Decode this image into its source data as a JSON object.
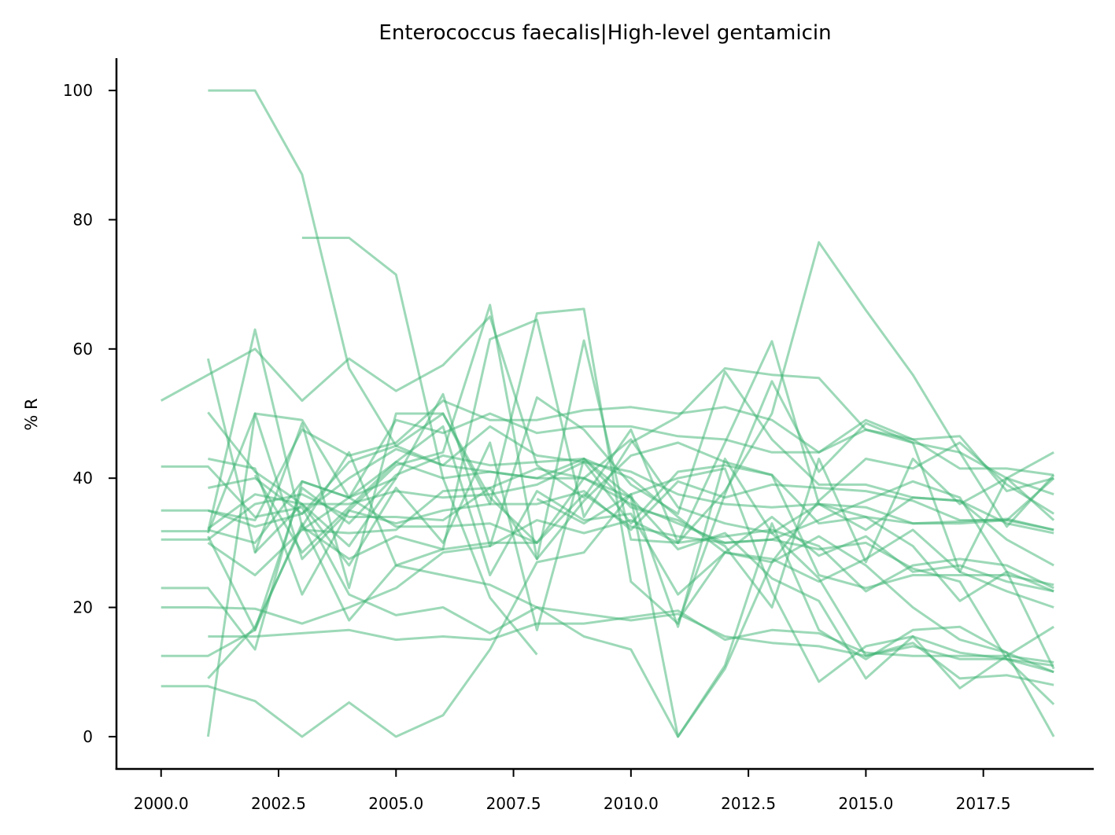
{
  "chart_data": {
    "type": "line",
    "title": "Enterococcus faecalis|High-level gentamicin",
    "xlabel": "",
    "ylabel": "% R",
    "xlim": [
      1999.05,
      2019.85
    ],
    "ylim": [
      -5,
      105
    ],
    "x_ticks": [
      {
        "value": 2000,
        "label": "2000.0"
      },
      {
        "value": 2002.5,
        "label": "2002.5"
      },
      {
        "value": 2005,
        "label": "2005.0"
      },
      {
        "value": 2007.5,
        "label": "2007.5"
      },
      {
        "value": 2010,
        "label": "2010.0"
      },
      {
        "value": 2012.5,
        "label": "2012.5"
      },
      {
        "value": 2015,
        "label": "2015.0"
      },
      {
        "value": 2017.5,
        "label": "2017.5"
      }
    ],
    "y_ticks": [
      {
        "value": 0,
        "label": "0"
      },
      {
        "value": 20,
        "label": "20"
      },
      {
        "value": 40,
        "label": "40"
      },
      {
        "value": 60,
        "label": "60"
      },
      {
        "value": 80,
        "label": "80"
      },
      {
        "value": 100,
        "label": "100"
      }
    ],
    "grid": false,
    "line_color": "#3cb371",
    "line_opacity": 0.5,
    "series": [
      {
        "x": [
          2001,
          2002,
          2003,
          2004,
          2005,
          2006,
          2007,
          2008
        ],
        "y": [
          100,
          100,
          87,
          57,
          45,
          50,
          37,
          30
        ]
      },
      {
        "x": [
          2003,
          2004,
          2005,
          2006,
          2007,
          2008
        ],
        "y": [
          77.2,
          77.2,
          71.5,
          40,
          21.5,
          12.7
        ]
      },
      {
        "x": [
          2000,
          2001,
          2002,
          2003,
          2004,
          2005,
          2006,
          2007,
          2008,
          2009,
          2010,
          2011,
          2012,
          2013,
          2014,
          2015,
          2016,
          2017,
          2018,
          2019
        ],
        "y": [
          52,
          56,
          60,
          52,
          58.5,
          53.5,
          57.5,
          65,
          42,
          37,
          47.5,
          30,
          38,
          50,
          76.5,
          66,
          56,
          44,
          32.5,
          40.5
        ]
      },
      {
        "x": [
          2001,
          2002,
          2003,
          2004,
          2005,
          2006,
          2007,
          2008,
          2009,
          2010,
          2011,
          2012,
          2013,
          2014,
          2015,
          2016,
          2017,
          2018,
          2019
        ],
        "y": [
          58.5,
          28.5,
          48.5,
          23,
          50,
          50,
          36,
          65.5,
          66.2,
          24,
          17.5,
          37.5,
          55,
          41,
          48.5,
          45.5,
          25.5,
          40,
          33.5
        ]
      },
      {
        "x": [
          2001,
          2002,
          2003,
          2004,
          2005,
          2006,
          2007,
          2008,
          2009,
          2010,
          2011,
          2012,
          2013,
          2014,
          2015,
          2016,
          2017,
          2018,
          2019
        ],
        "y": [
          50.2,
          41,
          36,
          29.5,
          40,
          53,
          29.5,
          52.5,
          47.5,
          39,
          34.5,
          56.5,
          46,
          39,
          39,
          37,
          36.5,
          30.5,
          26.5
        ]
      },
      {
        "x": [
          2001,
          2002,
          2003,
          2004,
          2005,
          2006,
          2007,
          2008,
          2009,
          2010,
          2011,
          2012,
          2013,
          2014,
          2015,
          2016,
          2017,
          2018,
          2019
        ],
        "y": [
          43,
          41.5,
          22,
          35,
          42,
          44,
          66.8,
          27.5,
          61.3,
          30.5,
          30,
          45.5,
          61.2,
          36,
          34,
          29.5,
          21,
          25.5,
          22.5
        ]
      },
      {
        "x": [
          2001,
          2002,
          2003,
          2004,
          2005,
          2006,
          2007,
          2008,
          2009,
          2010,
          2011,
          2012,
          2013,
          2014,
          2015,
          2016,
          2017,
          2018,
          2019
        ],
        "y": [
          9,
          17,
          32.5,
          44,
          26.5,
          29,
          61.5,
          64.5,
          34,
          45.5,
          49.5,
          57,
          56,
          55.5,
          47.5,
          46,
          46.5,
          38,
          40
        ]
      },
      {
        "x": [
          2001,
          2002,
          2003,
          2004,
          2005,
          2006,
          2007,
          2008,
          2009,
          2010,
          2011,
          2012,
          2013,
          2014,
          2015,
          2016,
          2017,
          2018,
          2019
        ],
        "y": [
          0,
          50,
          49,
          37,
          49,
          47,
          50,
          47,
          48,
          48,
          46.5,
          46,
          44,
          44,
          47.5,
          45.5,
          44,
          40,
          37.5
        ]
      },
      {
        "x": [
          2001,
          2002,
          2003,
          2004,
          2005,
          2006,
          2007,
          2008,
          2009,
          2010,
          2011,
          2012,
          2013,
          2014,
          2015,
          2016,
          2017,
          2018,
          2019
        ],
        "y": [
          35,
          33.5,
          47.5,
          43.5,
          45.5,
          52,
          49,
          49,
          50.5,
          51,
          50,
          51,
          49,
          44,
          49,
          46,
          41.5,
          41.5,
          40.5
        ]
      },
      {
        "x": [
          2001,
          2002,
          2003,
          2004,
          2005,
          2006,
          2007,
          2008,
          2009,
          2010,
          2011,
          2012,
          2013,
          2014,
          2015,
          2016,
          2017,
          2018,
          2019
        ],
        "y": [
          38.5,
          40,
          34.5,
          40,
          44.5,
          42,
          48,
          43.5,
          42.5,
          33,
          41,
          42,
          40.5,
          33,
          34,
          33,
          33.3,
          33.7,
          32
        ]
      },
      {
        "x": [
          2001,
          2002,
          2003,
          2004,
          2005,
          2006,
          2007,
          2008,
          2009,
          2010,
          2011,
          2012,
          2013,
          2014,
          2015,
          2016,
          2017,
          2018,
          2019
        ],
        "y": [
          32,
          30,
          39.5,
          37,
          42.5,
          40,
          41,
          40,
          40,
          46,
          35.5,
          33,
          31.5,
          36,
          35.5,
          33,
          33,
          33.5,
          40
        ]
      },
      {
        "x": [
          2001,
          2002,
          2003,
          2004,
          2005,
          2006,
          2007,
          2008,
          2009,
          2010,
          2011,
          2012,
          2013,
          2014,
          2015,
          2016,
          2017,
          2018,
          2019
        ],
        "y": [
          30,
          25,
          32,
          31.5,
          32,
          38,
          38.5,
          27.5,
          36.5,
          43.5,
          45.5,
          42.5,
          40.5,
          25,
          23,
          25,
          25,
          25,
          23.5
        ]
      },
      {
        "x": [
          2001,
          2002,
          2003,
          2004,
          2005,
          2006,
          2007,
          2008,
          2009,
          2010,
          2011,
          2012,
          2013,
          2014,
          2015,
          2016,
          2017,
          2018,
          2019
        ],
        "y": [
          31.5,
          50,
          27.5,
          35,
          33,
          35,
          36,
          36,
          38,
          32,
          39.5,
          37,
          39,
          38.5,
          38,
          36.5,
          33.5,
          33.5,
          32
        ]
      },
      {
        "x": [
          2001,
          2002,
          2003,
          2004,
          2005,
          2006,
          2007,
          2008,
          2009,
          2010,
          2011,
          2012,
          2013,
          2014,
          2015,
          2016,
          2017,
          2018,
          2019
        ],
        "y": [
          32.2,
          37.5,
          36,
          36,
          38,
          37,
          37.5,
          39,
          42.5,
          41,
          37.5,
          36,
          35.5,
          36,
          32,
          37,
          36.5,
          33,
          31.5
        ]
      },
      {
        "x": [
          2001,
          2002,
          2003,
          2004,
          2005,
          2006,
          2007,
          2008,
          2009,
          2010,
          2011,
          2012,
          2013,
          2014,
          2015,
          2016,
          2017,
          2018,
          2019
        ],
        "y": [
          31,
          16.5,
          38.5,
          33,
          40.5,
          43.5,
          42,
          42.5,
          43,
          40,
          34,
          28.5,
          27.5,
          24,
          27.5,
          32,
          25.5,
          22.5,
          20
        ]
      },
      {
        "x": [
          2001,
          2002,
          2003,
          2004,
          2005,
          2006,
          2007,
          2008,
          2009,
          2010,
          2011,
          2012,
          2013,
          2014,
          2015,
          2016,
          2017,
          2018,
          2019
        ],
        "y": [
          15.5,
          15.5,
          16,
          16.5,
          15,
          15.5,
          15,
          17.5,
          17.5,
          18.5,
          19.5,
          15,
          16.5,
          16,
          13,
          12.5,
          12.5,
          12.5,
          11.5
        ]
      },
      {
        "x": [
          2000,
          2001,
          2002,
          2003,
          2004,
          2005,
          2006,
          2007,
          2008,
          2009,
          2010,
          2011,
          2012,
          2013,
          2014,
          2015,
          2016,
          2017,
          2018,
          2019
        ],
        "y": [
          20,
          20,
          19.8,
          17.5,
          20,
          23,
          28.5,
          29.5,
          33.5,
          31.5,
          33.5,
          30,
          31,
          32,
          29.5,
          22.5,
          26.5,
          27.5,
          26.5,
          23
        ]
      },
      {
        "x": [
          2000,
          2001,
          2002,
          2003,
          2004,
          2005,
          2006,
          2007,
          2008,
          2009,
          2010,
          2011,
          2012,
          2013,
          2014,
          2015,
          2016,
          2017,
          2018,
          2019
        ],
        "y": [
          23,
          23,
          13.5,
          39.5,
          37,
          32.5,
          32.5,
          33,
          30,
          37.5,
          32.5,
          31,
          30,
          30.5,
          33.5,
          36.5,
          39.5,
          37,
          25.5,
          10.5
        ]
      },
      {
        "x": [
          2000,
          2001,
          2002,
          2003,
          2004,
          2005,
          2006,
          2007,
          2008,
          2009,
          2010,
          2011,
          2012,
          2013,
          2014,
          2015,
          2016,
          2017,
          2018,
          2019
        ],
        "y": [
          12.5,
          12.5,
          16.5,
          33,
          18,
          26.5,
          25,
          23.5,
          20,
          19,
          18,
          19,
          15.5,
          14.5,
          14,
          12.5,
          14,
          12,
          12,
          10
        ]
      },
      {
        "x": [
          2000,
          2001,
          2002,
          2003,
          2004,
          2005,
          2006,
          2007,
          2008,
          2009,
          2010,
          2011,
          2012,
          2013,
          2014,
          2015,
          2016,
          2017,
          2018,
          2019
        ],
        "y": [
          7.8,
          7.8,
          5.5,
          0,
          5.3,
          0,
          3.3,
          13.5,
          27,
          28.5,
          37.5,
          40,
          41.5,
          22.5,
          8.5,
          14,
          15.5,
          13,
          12,
          11
        ]
      },
      {
        "x": [
          2000,
          2001,
          2002,
          2003,
          2004,
          2005,
          2006,
          2007,
          2008,
          2009,
          2010,
          2011,
          2012,
          2013,
          2014,
          2015,
          2016,
          2017,
          2018,
          2019
        ],
        "y": [
          30.5,
          30.5,
          36,
          37.5,
          34,
          34,
          33.5,
          38.5,
          41.5,
          40,
          37,
          0,
          10.5,
          27,
          31,
          26.5,
          20,
          15,
          13,
          10
        ]
      },
      {
        "x": [
          2000,
          2001,
          2002,
          2003,
          2004,
          2005,
          2006,
          2007,
          2008,
          2009,
          2010,
          2011,
          2012,
          2013,
          2014,
          2015,
          2016,
          2017,
          2018,
          2019
        ],
        "y": [
          31.8,
          31.8,
          63,
          32.5,
          27.5,
          31,
          29,
          30,
          30,
          40,
          36,
          33,
          30,
          30.5,
          29,
          30,
          26,
          24,
          12,
          5
        ]
      },
      {
        "x": [
          2000,
          2001,
          2002,
          2003,
          2004,
          2005,
          2006,
          2007,
          2008,
          2009,
          2010,
          2011,
          2012,
          2013,
          2014,
          2015,
          2016,
          2017,
          2018,
          2019
        ],
        "y": [
          35,
          35,
          32.5,
          34.5,
          42.5,
          45,
          42,
          41,
          40,
          43,
          37,
          29,
          31.5,
          24.5,
          21,
          9,
          15.5,
          7.5,
          12.5,
          17
        ]
      },
      {
        "x": [
          2000,
          2001,
          2002,
          2003,
          2004,
          2005,
          2006,
          2007,
          2008,
          2009,
          2010,
          2011,
          2012,
          2013,
          2014,
          2015,
          2016,
          2017,
          2018,
          2019
        ],
        "y": [
          41.8,
          41.8,
          34,
          35.5,
          22,
          18.8,
          20,
          16,
          20,
          15.5,
          13.5,
          0,
          11,
          33,
          16.5,
          12,
          16.5,
          17,
          13,
          0
        ]
      },
      {
        "x": [
          2002,
          2003,
          2004,
          2005,
          2006,
          2007,
          2008,
          2009,
          2010,
          2011,
          2012,
          2013,
          2014,
          2015,
          2016,
          2017,
          2018,
          2019
        ],
        "y": [
          40.5,
          28.5,
          35.5,
          42.5,
          48,
          25,
          38,
          33.5,
          34.5,
          22,
          28.5,
          34,
          28,
          31,
          25.5,
          26.5,
          24,
          22.5
        ]
      },
      {
        "x": [
          2002,
          2003,
          2004,
          2005,
          2006,
          2007,
          2008,
          2009,
          2010,
          2011,
          2012,
          2013,
          2014,
          2015,
          2016,
          2017,
          2018,
          2019
        ],
        "y": [
          28.5,
          36,
          26.5,
          38.5,
          30,
          45.5,
          16.5,
          43,
          35.5,
          33.5,
          29.5,
          20,
          43,
          27,
          43,
          36,
          40,
          44
        ]
      },
      {
        "x": [
          2003,
          2004,
          2005
        ],
        "y": [
          32,
          37,
          40
        ]
      },
      {
        "x": [
          2008,
          2009,
          2010,
          2011,
          2012,
          2013,
          2014,
          2015,
          2016,
          2017,
          2018,
          2019
        ],
        "y": [
          36.8,
          33,
          37.5,
          17,
          43,
          31.5,
          24.5,
          12.5,
          14.5,
          9,
          9.5,
          8
        ]
      },
      {
        "x": [
          2011,
          2012,
          2013,
          2014,
          2015,
          2016,
          2017,
          2018,
          2019
        ],
        "y": [
          18,
          28.5,
          27,
          36.5,
          43,
          41.5,
          45.5,
          39,
          34.5
        ]
      }
    ]
  }
}
